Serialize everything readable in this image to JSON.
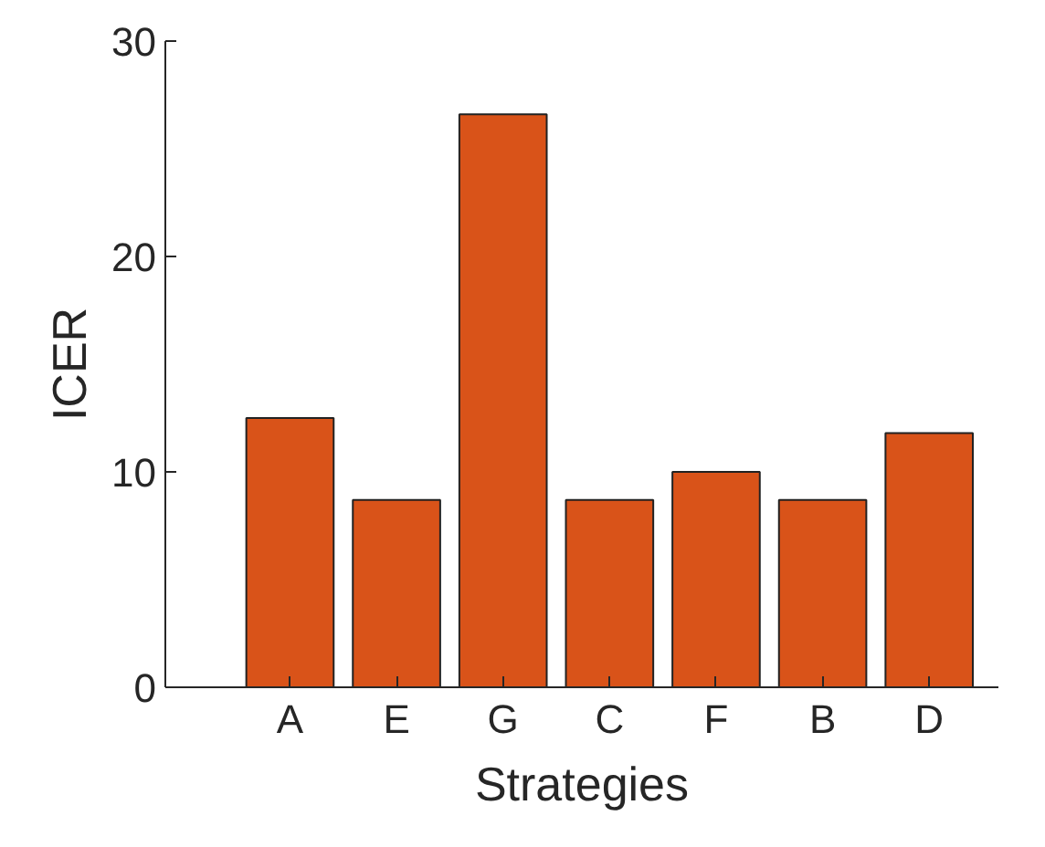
{
  "chart_data": {
    "type": "bar",
    "xlabel": "Strategies",
    "ylabel": "ICER",
    "categories": [
      "A",
      "E",
      "G",
      "C",
      "F",
      "B",
      "D"
    ],
    "values": [
      12.5,
      8.7,
      26.6,
      8.7,
      10.0,
      8.7,
      11.8
    ],
    "color": "#d95319",
    "ylim": [
      0,
      30
    ],
    "yticks": [
      0,
      10,
      20,
      30
    ],
    "grid": false
  }
}
